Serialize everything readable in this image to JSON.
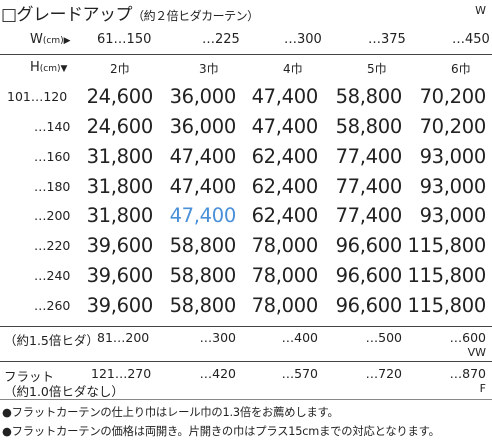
{
  "title": {
    "main": "□グレードアップ",
    "sub": "（約２倍ヒダカーテン）",
    "corner": "W"
  },
  "header": {
    "w_label": "W",
    "w_unit": "(cm)",
    "w_arrow": "▶",
    "widths": [
      "61…150",
      "…225",
      "…300",
      "…375",
      "…450"
    ],
    "h_label": "H",
    "h_unit": "(cm)",
    "h_arrow": "▼",
    "panels": [
      "2巾",
      "3巾",
      "4巾",
      "5巾",
      "6巾"
    ]
  },
  "rows": [
    {
      "height": "101…120",
      "prices": [
        "24,600",
        "36,000",
        "47,400",
        "58,800",
        "70,200"
      ]
    },
    {
      "height": "…140",
      "prices": [
        "24,600",
        "36,000",
        "47,400",
        "58,800",
        "70,200"
      ]
    },
    {
      "height": "…160",
      "prices": [
        "31,800",
        "47,400",
        "62,400",
        "77,400",
        "93,000"
      ]
    },
    {
      "height": "…180",
      "prices": [
        "31,800",
        "47,400",
        "62,400",
        "77,400",
        "93,000"
      ]
    },
    {
      "height": "…200",
      "prices": [
        "31,800",
        "47,400",
        "62,400",
        "77,400",
        "93,000"
      ]
    },
    {
      "height": "…220",
      "prices": [
        "39,600",
        "58,800",
        "78,000",
        "96,600",
        "115,800"
      ]
    },
    {
      "height": "…240",
      "prices": [
        "39,600",
        "58,800",
        "78,000",
        "96,600",
        "115,800"
      ]
    },
    {
      "height": "…260",
      "prices": [
        "39,600",
        "58,800",
        "78,000",
        "96,600",
        "115,800"
      ]
    }
  ],
  "highlight_color": "#4a90d9",
  "pleat15": {
    "label": "（約1.5倍ヒダ）",
    "widths": [
      "81…200",
      "…300",
      "…400",
      "…500",
      "…600"
    ],
    "unit": "VW"
  },
  "flat": {
    "label_line1": "フラット",
    "label_line2": "（約1.0倍ヒダなし）",
    "widths": [
      "121…270",
      "…420",
      "…570",
      "…720",
      "…870"
    ],
    "unit": "F"
  },
  "notes": [
    "●フラットカーテンの仕上り巾はレール巾の1.3倍をお薦めします。",
    "●フラットカーテンの価格は両開き。片開きの巾はプラス15cmまでの対応となります。"
  ]
}
